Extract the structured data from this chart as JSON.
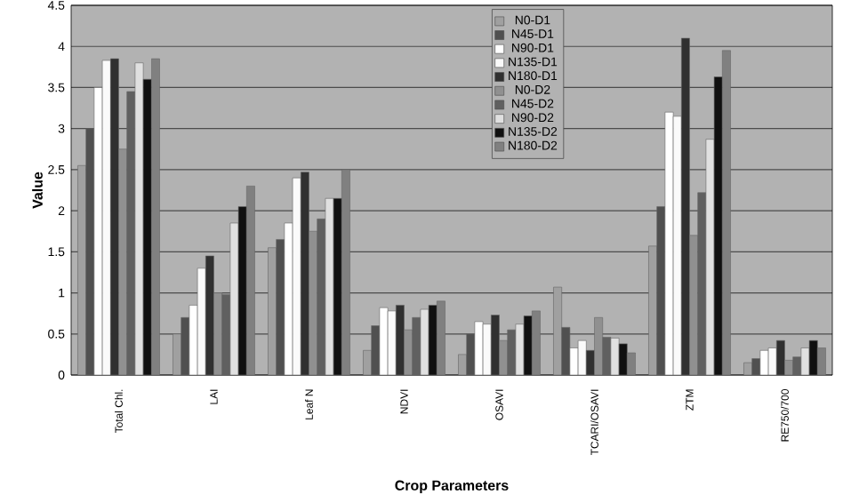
{
  "chart_data": {
    "type": "bar",
    "xlabel": "Crop Parameters",
    "ylabel": "Value",
    "categories": [
      "Total Chl.",
      "LAI",
      "Leaf N",
      "NDVI",
      "OSAVI",
      "TCARI/OSAVI",
      "ZTM",
      "RE750/700"
    ],
    "series": [
      {
        "name": "N0-D1",
        "color": "#a0a0a0",
        "values": [
          2.55,
          0.5,
          1.55,
          0.3,
          0.25,
          1.07,
          1.57,
          0.15
        ]
      },
      {
        "name": "N45-D1",
        "color": "#505050",
        "values": [
          3.0,
          0.7,
          1.65,
          0.6,
          0.5,
          0.58,
          2.05,
          0.2
        ]
      },
      {
        "name": "N90-D1",
        "color": "#ffffff",
        "values": [
          3.5,
          0.85,
          1.85,
          0.82,
          0.65,
          0.33,
          3.2,
          0.3
        ]
      },
      {
        "name": "N135-D1",
        "color": "#fafafa",
        "values": [
          3.83,
          1.3,
          2.4,
          0.78,
          0.62,
          0.42,
          3.15,
          0.33
        ]
      },
      {
        "name": "N180-D1",
        "color": "#303030",
        "values": [
          3.85,
          1.45,
          2.47,
          0.85,
          0.73,
          0.3,
          4.1,
          0.42
        ]
      },
      {
        "name": "N0-D2",
        "color": "#909090",
        "values": [
          2.75,
          1.0,
          1.75,
          0.55,
          0.42,
          0.7,
          1.7,
          0.18
        ]
      },
      {
        "name": "N45-D2",
        "color": "#606060",
        "values": [
          3.45,
          0.98,
          1.9,
          0.7,
          0.55,
          0.46,
          2.22,
          0.22
        ]
      },
      {
        "name": "N90-D2",
        "color": "#e0e0e0",
        "values": [
          3.8,
          1.85,
          2.15,
          0.8,
          0.62,
          0.45,
          2.87,
          0.33
        ]
      },
      {
        "name": "N135-D2",
        "color": "#101010",
        "values": [
          3.6,
          2.05,
          2.15,
          0.85,
          0.72,
          0.38,
          3.63,
          0.42
        ]
      },
      {
        "name": "N180-D2",
        "color": "#808080",
        "values": [
          3.85,
          2.3,
          2.5,
          0.9,
          0.78,
          0.27,
          3.95,
          0.33
        ]
      }
    ],
    "ylim": [
      0,
      4.5
    ],
    "yticks": [
      0,
      0.5,
      1,
      1.5,
      2,
      2.5,
      3,
      3.5,
      4,
      4.5
    ],
    "grid": "y",
    "legend": "top"
  }
}
